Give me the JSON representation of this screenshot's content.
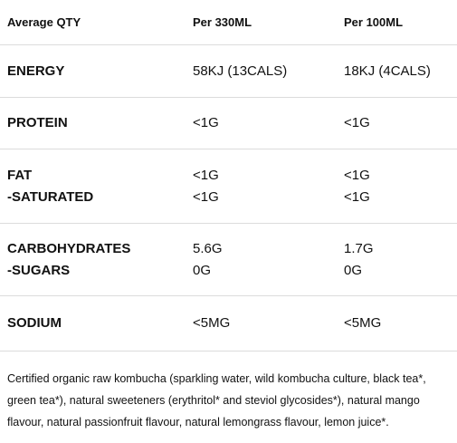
{
  "table": {
    "header": [
      "Average QTY",
      "Per 330ML",
      "Per 100ML"
    ],
    "rows": [
      [
        [
          "ENERGY"
        ],
        [
          "58KJ (13CALS)"
        ],
        [
          "18KJ (4CALS)"
        ]
      ],
      [
        [
          "PROTEIN"
        ],
        [
          "<1G"
        ],
        [
          "<1G"
        ]
      ],
      [
        [
          "FAT",
          "-SATURATED"
        ],
        [
          "<1G",
          "<1G"
        ],
        [
          "<1G",
          "<1G"
        ]
      ],
      [
        [
          "CARBOHYDRATES",
          "-SUGARS"
        ],
        [
          "5.6G",
          "0G"
        ],
        [
          "1.7G",
          "0G"
        ]
      ],
      [
        [
          "SODIUM"
        ],
        [
          "<5MG"
        ],
        [
          "<5MG"
        ]
      ]
    ]
  },
  "ingredients": "Certified organic raw kombucha (sparkling water, wild kombucha culture, black tea*, green tea*), natural sweeteners (erythritol* and steviol glycosides*), natural mango flavour, natural passionfruit flavour, natural lemongrass flavour, lemon juice*."
}
